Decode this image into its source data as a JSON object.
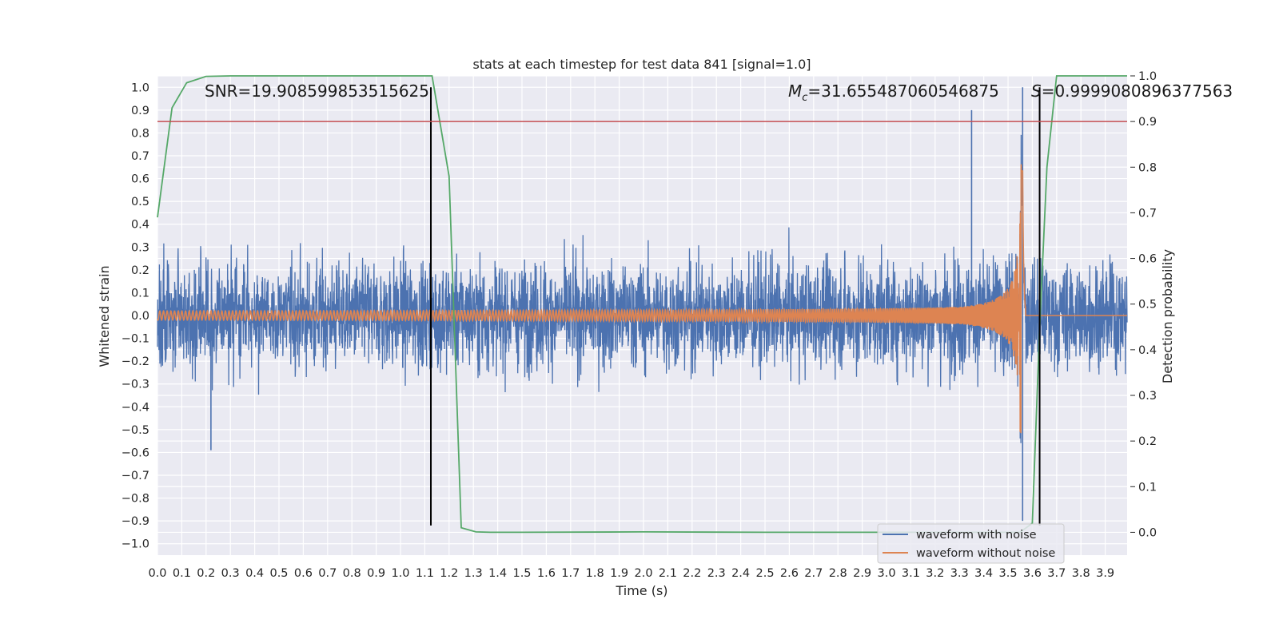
{
  "chart_data": {
    "type": "line",
    "title": "stats at each timestep for test data 841 [signal=1.0]",
    "xlabel": "Time (s)",
    "ylabel": "Whitened strain",
    "ylabel_right": "Detection probability",
    "xlim": [
      0.0,
      3.99
    ],
    "ylim": [
      -1.05,
      1.05
    ],
    "ylim_right": [
      -0.05,
      1.0
    ],
    "x_ticks": [
      0.0,
      0.1,
      0.2,
      0.3,
      0.4,
      0.5,
      0.6,
      0.7,
      0.8,
      0.9,
      1.0,
      1.1,
      1.2,
      1.3,
      1.4,
      1.5,
      1.6,
      1.7,
      1.8,
      1.9,
      2.0,
      2.1,
      2.2,
      2.3,
      2.4,
      2.5,
      2.6,
      2.7,
      2.8,
      2.9,
      3.0,
      3.1,
      3.2,
      3.3,
      3.4,
      3.5,
      3.6,
      3.7,
      3.8,
      3.9
    ],
    "x_tick_labels": [
      "0.0",
      "0.1",
      "0.2",
      "0.3",
      "0.4",
      "0.5",
      "0.6",
      "0.7",
      "0.8",
      "0.9",
      "1.0",
      "1.1",
      "1.2",
      "1.3",
      "1.4",
      "1.5",
      "1.6",
      "1.7",
      "1.8",
      "1.9",
      "2.0",
      "2.1",
      "2.2",
      "2.3",
      "2.4",
      "2.5",
      "2.6",
      "2.7",
      "2.8",
      "2.9",
      "3.0",
      "3.1",
      "3.2",
      "3.3",
      "3.4",
      "3.5",
      "3.6",
      "3.7",
      "3.8",
      "3.9"
    ],
    "y_ticks": [
      1.0,
      0.9,
      0.8,
      0.7,
      0.6,
      0.5,
      0.4,
      0.3,
      0.2,
      0.1,
      0.0,
      -0.1,
      -0.2,
      -0.3,
      -0.4,
      -0.5,
      -0.6,
      -0.7,
      -0.8,
      -0.9,
      -1.0
    ],
    "y_tick_labels": [
      "1.0",
      "0.9",
      "0.8",
      "0.7",
      "0.6",
      "0.5",
      "0.4",
      "0.3",
      "0.2",
      "0.1",
      "0.0",
      "−0.1",
      "−0.2",
      "−0.3",
      "−0.4",
      "−0.5",
      "−0.6",
      "−0.7",
      "−0.8",
      "−0.9",
      "−1.0"
    ],
    "y_right_ticks": [
      1.0,
      0.9,
      0.8,
      0.7,
      0.6,
      0.5,
      0.4,
      0.3,
      0.2,
      0.1,
      0.0
    ],
    "y_right_tick_labels": [
      "1.0",
      "0.9",
      "0.8",
      "0.7",
      "0.6",
      "0.5",
      "0.4",
      "0.3",
      "0.2",
      "0.1",
      "0.0"
    ],
    "grid": true,
    "background": "#eaeaf2",
    "legend": {
      "position": "lower-right",
      "entries": [
        {
          "label": "waveform with noise",
          "color": "#4c72b0"
        },
        {
          "label": "waveform without noise",
          "color": "#dd8452"
        }
      ]
    },
    "series": [
      {
        "name": "waveform with noise",
        "color": "#4c72b0",
        "axis": "left",
        "description_range": [
          -1.0,
          1.0
        ],
        "notable_peaks": [
          {
            "x": 3.35,
            "y": 0.9
          },
          {
            "x": 3.56,
            "y": 1.0
          },
          {
            "x": 3.56,
            "y": -0.9
          },
          {
            "x": 0.22,
            "y": -0.59
          }
        ]
      },
      {
        "name": "waveform without noise",
        "color": "#dd8452",
        "axis": "left",
        "chirp": {
          "start": 0.0,
          "merger": 3.56,
          "end_amplitude": 0.82,
          "start_amplitude": 0.02
        }
      },
      {
        "color": "#55a868",
        "axis": "right",
        "x": [
          0.0,
          0.06,
          0.12,
          0.2,
          0.3,
          0.5,
          1.0,
          1.13,
          1.2,
          1.25,
          1.31,
          1.37,
          1.5,
          2.0,
          2.5,
          3.0,
          3.5,
          3.55,
          3.6,
          3.63,
          3.66,
          3.7,
          3.9,
          3.99
        ],
        "y": [
          0.69,
          0.93,
          0.985,
          0.999,
          1.0,
          1.0,
          1.0,
          1.0,
          0.78,
          0.01,
          0.001,
          0.0,
          0.0,
          0.001,
          0.0,
          0.0,
          0.0,
          0.0,
          0.02,
          0.45,
          0.8,
          1.0,
          1.0,
          1.0
        ]
      }
    ],
    "threshold_line": {
      "y_right": 0.9,
      "color": "#c44e52"
    },
    "vertical_markers": [
      {
        "x": 1.125,
        "color": "#000000"
      },
      {
        "x": 3.63,
        "color": "#000000"
      }
    ],
    "annotations": {
      "snr": "SNR=19.908599853515625",
      "mc_symbol": "M",
      "mc_sub": "c",
      "mc_value": "=31.655487060546875",
      "s_symbol": "S",
      "s_value": "=0.9999080896377563"
    }
  }
}
